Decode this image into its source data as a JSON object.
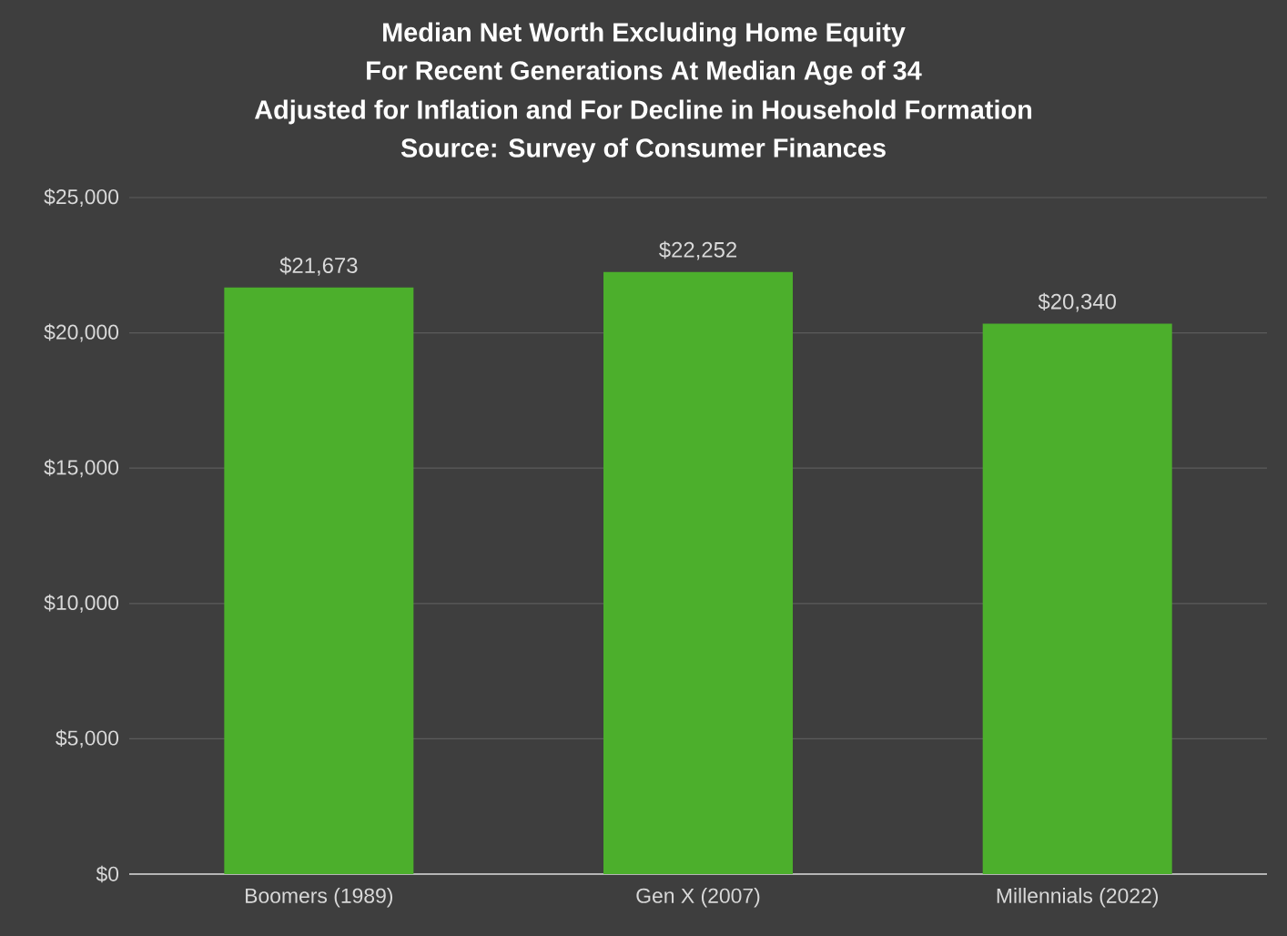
{
  "chart_data": {
    "type": "bar",
    "title": "Median Net Worth Excluding Home Equity",
    "subtitle": "For Recent Generations At Median Age of 34",
    "annotations": [
      "Adjusted for Inflation and For Decline in Household Formation",
      "Source: Survey of Consumer Finances"
    ],
    "categories": [
      "Boomers (1989)",
      "Gen X (2007)",
      "Millennials (2022)"
    ],
    "values": [
      21673,
      22252,
      20340
    ],
    "value_labels": [
      "$21,673",
      "$22,252",
      "$20,340"
    ],
    "color": "#4caf2c",
    "ylim": [
      0,
      25000
    ],
    "yticks": [
      {
        "value": 0,
        "label": "$0"
      },
      {
        "value": 5000,
        "label": "$5,000"
      },
      {
        "value": 10000,
        "label": "$10,000"
      },
      {
        "value": 15000,
        "label": "$15,000"
      },
      {
        "value": 20000,
        "label": "$20,000"
      },
      {
        "value": 25000,
        "label": "$25,000"
      }
    ],
    "grid": "y"
  }
}
